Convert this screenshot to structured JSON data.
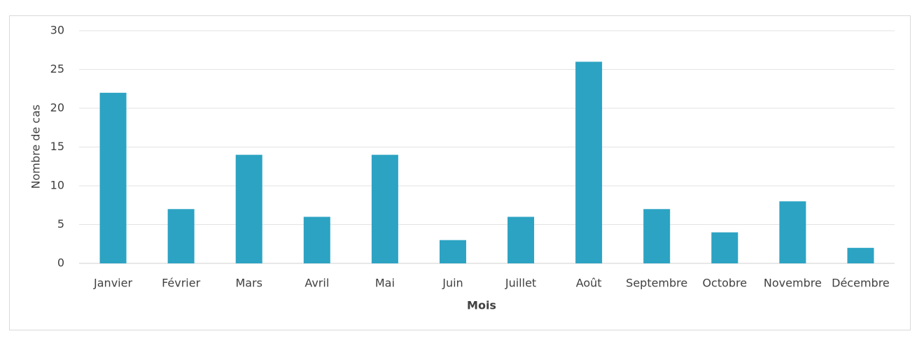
{
  "chart_data": {
    "type": "bar",
    "x_label": "Mois",
    "y_label": "Nombre de cas",
    "categories": [
      "Janvier",
      "Février",
      "Mars",
      "Avril",
      "Mai",
      "Juin",
      "Juillet",
      "Août",
      "Septembre",
      "Octobre",
      "Novembre",
      "Décembre"
    ],
    "values": [
      22,
      7,
      14,
      6,
      14,
      3,
      6,
      26,
      7,
      4,
      8,
      2
    ],
    "color": "#2ca3c3",
    "ylim": [
      0,
      30
    ],
    "yticks": [
      0,
      5,
      10,
      15,
      20,
      25,
      30
    ],
    "grid": true
  }
}
